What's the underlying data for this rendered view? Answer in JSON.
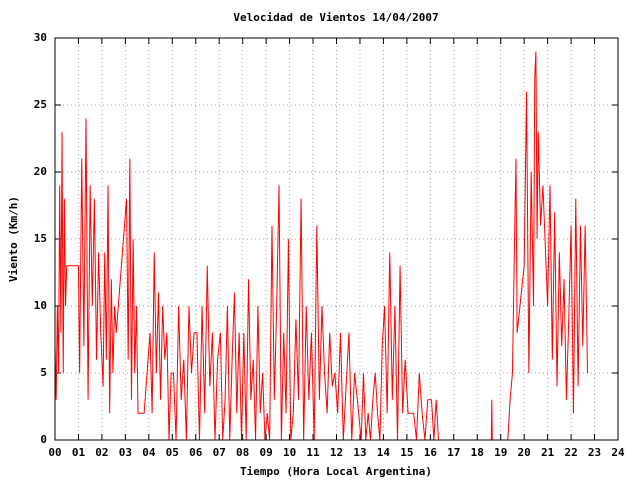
{
  "chart_data": {
    "type": "line",
    "title": "Velocidad de Vientos 14/04/2007",
    "x_label": "Tiempo (Hora Local Argentina)",
    "y_label": "Viento (Km/h)",
    "xlim": [
      0,
      24
    ],
    "ylim": [
      0,
      30
    ],
    "xticks": [
      {
        "value": 0,
        "label": "00"
      },
      {
        "value": 1,
        "label": "01"
      },
      {
        "value": 2,
        "label": "02"
      },
      {
        "value": 3,
        "label": "03"
      },
      {
        "value": 4,
        "label": "04"
      },
      {
        "value": 5,
        "label": "05"
      },
      {
        "value": 6,
        "label": "06"
      },
      {
        "value": 7,
        "label": "07"
      },
      {
        "value": 8,
        "label": "08"
      },
      {
        "value": 9,
        "label": "09"
      },
      {
        "value": 10,
        "label": "10"
      },
      {
        "value": 11,
        "label": "11"
      },
      {
        "value": 12,
        "label": "12"
      },
      {
        "value": 13,
        "label": "13"
      },
      {
        "value": 14,
        "label": "14"
      },
      {
        "value": 15,
        "label": "15"
      },
      {
        "value": 16,
        "label": "16"
      },
      {
        "value": 17,
        "label": "17"
      },
      {
        "value": 18,
        "label": "18"
      },
      {
        "value": 19,
        "label": "19"
      },
      {
        "value": 20,
        "label": "20"
      },
      {
        "value": 21,
        "label": "21"
      },
      {
        "value": 22,
        "label": "22"
      },
      {
        "value": 23,
        "label": "23"
      },
      {
        "value": 24,
        "label": "24"
      }
    ],
    "yticks": [
      0,
      5,
      10,
      15,
      20,
      25,
      30
    ],
    "grid": true,
    "color": "#ff0000",
    "x": [
      0.0,
      0.05,
      0.1,
      0.15,
      0.2,
      0.25,
      0.3,
      0.35,
      0.4,
      0.45,
      0.5,
      1.0,
      1.05,
      1.14,
      1.23,
      1.32,
      1.41,
      1.5,
      1.59,
      1.68,
      1.77,
      1.86,
      1.95,
      2.05,
      2.12,
      2.19,
      2.26,
      2.33,
      2.4,
      2.47,
      2.54,
      2.61,
      3.05,
      3.12,
      3.19,
      3.26,
      3.33,
      3.4,
      3.47,
      3.54,
      3.8,
      4.05,
      4.14,
      4.23,
      4.32,
      4.41,
      4.5,
      4.59,
      4.68,
      4.77,
      4.86,
      4.95,
      5.05,
      5.16,
      5.27,
      5.38,
      5.49,
      5.6,
      5.71,
      5.82,
      5.93,
      6.05,
      6.16,
      6.27,
      6.38,
      6.49,
      6.6,
      6.71,
      6.82,
      6.93,
      7.05,
      7.15,
      7.25,
      7.35,
      7.45,
      7.55,
      7.65,
      7.75,
      7.85,
      7.95,
      8.05,
      8.15,
      8.25,
      8.35,
      8.45,
      8.55,
      8.65,
      8.75,
      8.85,
      8.95,
      9.05,
      9.15,
      9.25,
      9.35,
      9.45,
      9.55,
      9.65,
      9.75,
      9.85,
      9.95,
      10.05,
      10.16,
      10.27,
      10.38,
      10.49,
      10.6,
      10.71,
      10.82,
      10.93,
      11.05,
      11.16,
      11.27,
      11.38,
      11.49,
      11.6,
      11.71,
      11.82,
      11.93,
      12.05,
      12.17,
      12.29,
      12.41,
      12.53,
      12.65,
      12.77,
      12.89,
      13.05,
      13.15,
      13.25,
      13.35,
      13.45,
      13.55,
      13.65,
      13.75,
      13.85,
      13.95,
      14.05,
      14.16,
      14.27,
      14.38,
      14.49,
      14.6,
      14.71,
      14.82,
      14.93,
      15.05,
      15.17,
      15.29,
      15.41,
      15.53,
      15.65,
      15.77,
      15.89,
      16.05,
      16.15,
      16.25,
      16.35,
      16.45,
      18.6,
      18.62,
      18.64,
      19.3,
      19.4,
      19.5,
      19.6,
      19.65,
      19.7,
      20.0,
      20.1,
      20.2,
      20.3,
      20.4,
      20.45,
      20.5,
      20.55,
      20.6,
      20.7,
      20.8,
      21.0,
      21.1,
      21.2,
      21.3,
      21.4,
      21.5,
      21.6,
      21.7,
      21.8,
      21.9,
      22.0,
      22.1,
      22.2,
      22.3,
      22.4,
      22.5,
      22.6,
      22.7
    ],
    "values": [
      7,
      3,
      10,
      5,
      19,
      8,
      23,
      5,
      18,
      10,
      13,
      13,
      5,
      21,
      7,
      24,
      3,
      19,
      10,
      18,
      6,
      14,
      8,
      4,
      14,
      6,
      19,
      2,
      12,
      5,
      10,
      8,
      18,
      6,
      21,
      3,
      15,
      5,
      10,
      2,
      2,
      8,
      2,
      14,
      5,
      11,
      3,
      10,
      6,
      8,
      0,
      5,
      5,
      0,
      10,
      3,
      6,
      0,
      10,
      5,
      8,
      8,
      0,
      10,
      2,
      13,
      4,
      8,
      0,
      6,
      8,
      0,
      3,
      10,
      0,
      6,
      11,
      2,
      8,
      0,
      8,
      0,
      12,
      3,
      6,
      0,
      10,
      2,
      5,
      0,
      2,
      0,
      16,
      3,
      10,
      19,
      0,
      8,
      2,
      15,
      0,
      2,
      9,
      3,
      18,
      0,
      10,
      3,
      8,
      0,
      16,
      3,
      10,
      5,
      2,
      8,
      4,
      5,
      2,
      8,
      0,
      4,
      8,
      0,
      5,
      3,
      0,
      5,
      0,
      2,
      0,
      3,
      5,
      2,
      0,
      7,
      10,
      2,
      14,
      3,
      10,
      0,
      13,
      2,
      6,
      2,
      2,
      2,
      0,
      5,
      2,
      0,
      3,
      3,
      0,
      3,
      0,
      0,
      0,
      3,
      0,
      0,
      3,
      5,
      16,
      21,
      8,
      13,
      26,
      5,
      20,
      10,
      27,
      29,
      15,
      23,
      16,
      19,
      10,
      19,
      6,
      17,
      4,
      14,
      7,
      12,
      3,
      9,
      16,
      2,
      18,
      4,
      16,
      7,
      16,
      5
    ]
  }
}
